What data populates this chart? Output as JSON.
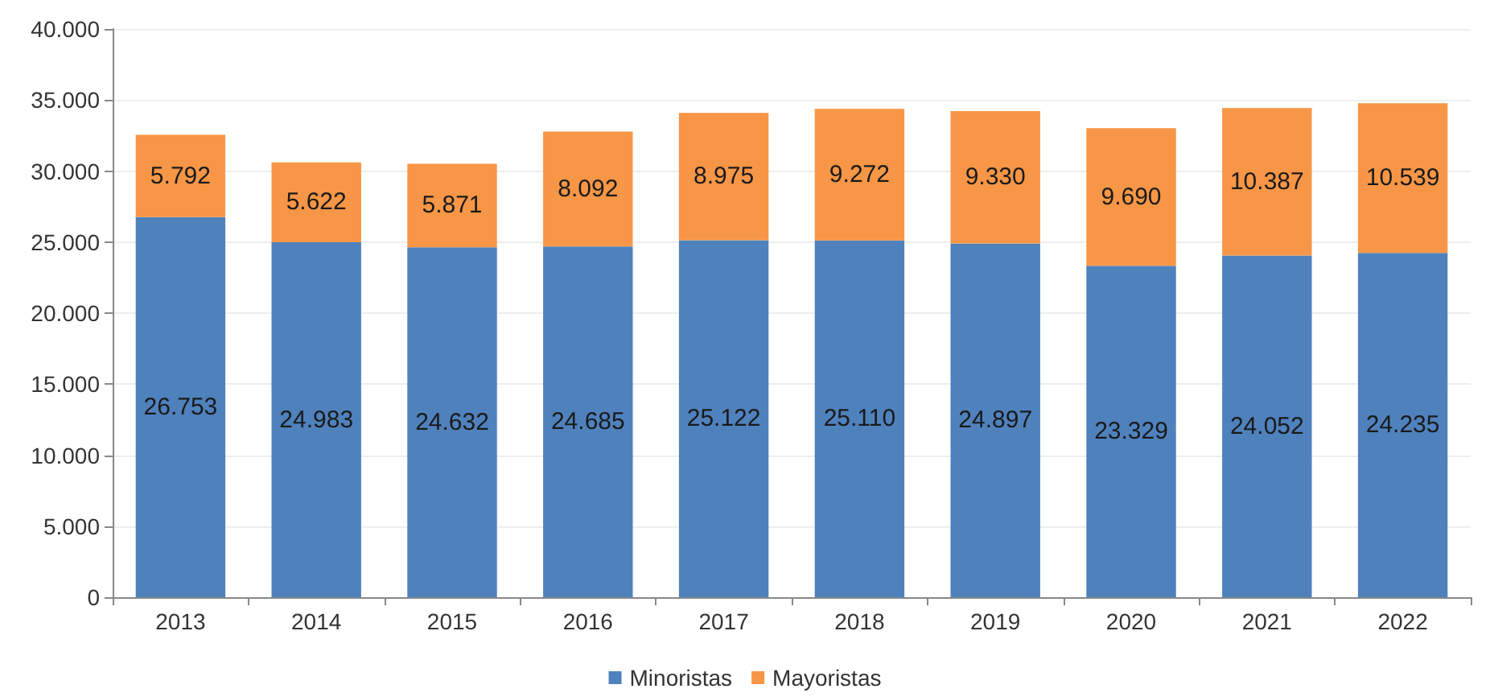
{
  "chart_data": {
    "type": "bar",
    "stacked": true,
    "categories": [
      "2013",
      "2014",
      "2015",
      "2016",
      "2017",
      "2018",
      "2019",
      "2020",
      "2021",
      "2022"
    ],
    "series": [
      {
        "name": "Minoristas",
        "color": "#4f81bd",
        "values": [
          26753,
          24983,
          24632,
          24685,
          25122,
          25110,
          24897,
          23329,
          24052,
          24235
        ],
        "value_labels": [
          "26.753",
          "24.983",
          "24.632",
          "24.685",
          "25.122",
          "25.110",
          "24.897",
          "23.329",
          "24.052",
          "24.235"
        ]
      },
      {
        "name": "Mayoristas",
        "color": "#f79646",
        "values": [
          5792,
          5622,
          5871,
          8092,
          8975,
          9272,
          9330,
          9690,
          10387,
          10539
        ],
        "value_labels": [
          "5.792",
          "5.622",
          "5.871",
          "8.092",
          "8.975",
          "9.272",
          "9.330",
          "9.690",
          "10.387",
          "10.539"
        ]
      }
    ],
    "ylim": [
      0,
      40000
    ],
    "yticks": [
      0,
      {
        "value": 5000,
        "label": "5.000"
      },
      {
        "value": 10000,
        "label": "10.000"
      },
      {
        "value": 15000,
        "label": "15.000"
      },
      {
        "value": 20000,
        "label": "20.000"
      },
      {
        "value": 25000,
        "label": "25.000"
      },
      {
        "value": 30000,
        "label": "30.000"
      },
      {
        "value": 35000,
        "label": "35.000"
      },
      {
        "value": 40000,
        "label": "40.000"
      }
    ],
    "grid": "y",
    "legend": "bottom"
  }
}
